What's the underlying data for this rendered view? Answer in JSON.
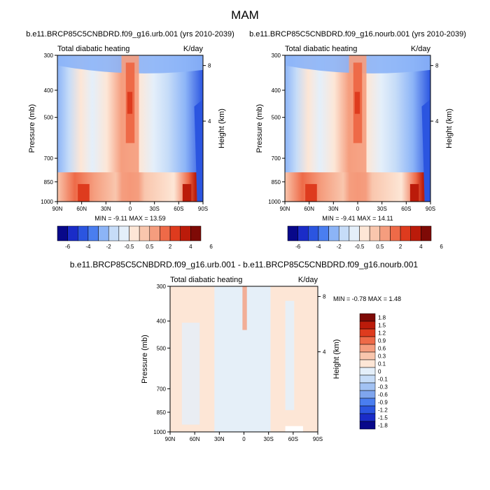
{
  "figure_title": "MAM",
  "chart_data": [
    {
      "type": "heatmap",
      "title": "b.e11.BRCP85C5CNBDRD.f09_g16.urb.001 (yrs 2010-2039)",
      "left_label": "Total diabatic heating",
      "right_label": "K/day",
      "xlabel": "",
      "ylabel": "Pressure (mb)",
      "ylabel_right": "Height (km)",
      "x_ticks": [
        "90N",
        "60N",
        "30N",
        "0",
        "30S",
        "60S",
        "90S"
      ],
      "y_ticks": [
        "300",
        "400",
        "500",
        "700",
        "850",
        "1000"
      ],
      "y_right_ticks": [
        "8",
        "4"
      ],
      "ylim": [
        1000,
        300
      ],
      "stats_text": "MIN = -9.11  MAX = 13.59",
      "min": -9.11,
      "max": 13.59,
      "legend_labels": [
        "-6",
        "-4",
        "-2",
        "-0.5",
        "0.5",
        "2",
        "4",
        "6"
      ]
    },
    {
      "type": "heatmap",
      "title": "b.e11.BRCP85C5CNBDRD.f09_g16.nourb.001 (yrs 2010-2039)",
      "left_label": "Total diabatic heating",
      "right_label": "K/day",
      "xlabel": "",
      "ylabel": "Pressure (mb)",
      "ylabel_right": "Height (km)",
      "x_ticks": [
        "90N",
        "60N",
        "30N",
        "0",
        "30S",
        "60S",
        "90S"
      ],
      "y_ticks": [
        "300",
        "400",
        "500",
        "700",
        "850",
        "1000"
      ],
      "y_right_ticks": [
        "8",
        "4"
      ],
      "ylim": [
        1000,
        300
      ],
      "stats_text": "MIN = -9.41  MAX = 14.11",
      "min": -9.41,
      "max": 14.11,
      "legend_labels": [
        "-6",
        "-4",
        "-2",
        "-0.5",
        "0.5",
        "2",
        "4",
        "6"
      ]
    },
    {
      "type": "heatmap",
      "title": "b.e11.BRCP85C5CNBDRD.f09_g16.urb.001 - b.e11.BRCP85C5CNBDRD.f09_g16.nourb.001",
      "left_label": "Total diabatic heating",
      "right_label": "K/day",
      "xlabel": "",
      "ylabel": "Pressure (mb)",
      "ylabel_right": "Height (km)",
      "x_ticks": [
        "90N",
        "60N",
        "30N",
        "0",
        "30S",
        "60S",
        "90S"
      ],
      "y_ticks": [
        "300",
        "400",
        "500",
        "700",
        "850",
        "1000"
      ],
      "y_right_ticks": [
        "8",
        "4"
      ],
      "ylim": [
        1000,
        300
      ],
      "stats_text": "MIN = -0.78  MAX =  1.48",
      "min": -0.78,
      "max": 1.48,
      "legend_labels": [
        "1.8",
        "1.5",
        "1.2",
        "0.9",
        "0.6",
        "0.3",
        "0.1",
        "0",
        "-0.1",
        "-0.3",
        "-0.6",
        "-0.9",
        "-1.2",
        "-1.5",
        "-1.8"
      ]
    }
  ],
  "colors": {
    "palette": [
      "#08088a",
      "#1a2cc8",
      "#2b55e0",
      "#4a7ef0",
      "#8cb4f7",
      "#c6dcf8",
      "#e4effa",
      "#fde6d6",
      "#f9c6ad",
      "#f59d7e",
      "#ee6a48",
      "#de3b1e",
      "#bb1b0a",
      "#7e0a06"
    ],
    "diff_palette": [
      "#7e0a06",
      "#bb1b0a",
      "#de3b1e",
      "#ee6a48",
      "#f59d7e",
      "#f9c6ad",
      "#fde6d6",
      "#e4effa",
      "#c6dcf8",
      "#a2c2f3",
      "#7fa5ee",
      "#4a7ef0",
      "#2b55e0",
      "#1a2cc8",
      "#08088a"
    ]
  }
}
